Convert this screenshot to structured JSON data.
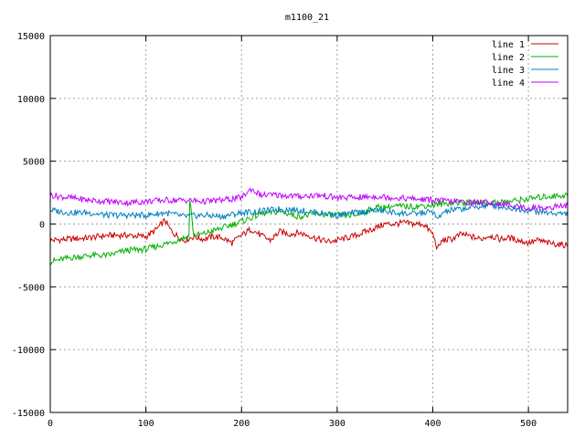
{
  "chart_data": {
    "type": "line",
    "title": "m1100_21",
    "xlabel": "",
    "ylabel": "",
    "xlim": [
      0,
      541
    ],
    "ylim": [
      -15000,
      15000
    ],
    "xticks": [
      0,
      100,
      200,
      300,
      400,
      500
    ],
    "yticks": [
      -15000,
      -10000,
      -5000,
      0,
      5000,
      10000,
      15000
    ],
    "grid": true,
    "legend_position": "top-right",
    "series": [
      {
        "name": "line 1",
        "color": "#cc0000",
        "x": [
          0,
          20,
          40,
          60,
          80,
          100,
          110,
          120,
          125,
          130,
          140,
          150,
          160,
          170,
          180,
          190,
          200,
          210,
          220,
          230,
          240,
          250,
          260,
          270,
          280,
          290,
          300,
          310,
          320,
          330,
          340,
          350,
          360,
          370,
          380,
          390,
          400,
          405,
          410,
          420,
          430,
          440,
          450,
          460,
          470,
          480,
          490,
          500,
          510,
          520,
          530,
          541
        ],
        "y": [
          -1300,
          -1200,
          -1100,
          -900,
          -900,
          -1000,
          -500,
          300,
          -400,
          -800,
          -1300,
          -1000,
          -1200,
          -1000,
          -1100,
          -1500,
          -900,
          -400,
          -900,
          -1300,
          -600,
          -800,
          -700,
          -900,
          -1200,
          -1400,
          -1300,
          -1100,
          -900,
          -600,
          -300,
          0,
          0,
          100,
          0,
          0,
          -800,
          -2000,
          -1300,
          -1200,
          -800,
          -1000,
          -1200,
          -900,
          -1200,
          -1100,
          -1300,
          -1500,
          -1300,
          -1500,
          -1600,
          -1700
        ]
      },
      {
        "name": "line 2",
        "color": "#00b000",
        "x": [
          0,
          20,
          40,
          60,
          80,
          100,
          120,
          140,
          145,
          146,
          150,
          160,
          180,
          200,
          210,
          220,
          240,
          260,
          280,
          300,
          320,
          340,
          360,
          380,
          400,
          410,
          420,
          440,
          460,
          480,
          500,
          520,
          541
        ],
        "y": [
          -3000,
          -2700,
          -2500,
          -2500,
          -2100,
          -2000,
          -1600,
          -1100,
          -1000,
          2000,
          -900,
          -800,
          -300,
          200,
          500,
          800,
          1000,
          600,
          800,
          700,
          700,
          1300,
          1400,
          1400,
          1500,
          1600,
          1700,
          1700,
          1700,
          1800,
          2000,
          2200,
          2300
        ]
      },
      {
        "name": "line 3",
        "color": "#0080c0",
        "x": [
          0,
          20,
          40,
          60,
          80,
          100,
          120,
          140,
          160,
          180,
          200,
          220,
          240,
          260,
          280,
          300,
          320,
          340,
          360,
          380,
          400,
          405,
          410,
          420,
          440,
          460,
          480,
          500,
          520,
          541
        ],
        "y": [
          1100,
          900,
          900,
          700,
          700,
          700,
          900,
          600,
          700,
          600,
          900,
          1000,
          1200,
          1100,
          900,
          700,
          900,
          1100,
          900,
          800,
          1000,
          300,
          900,
          1100,
          1300,
          1500,
          1300,
          1100,
          900,
          800
        ]
      },
      {
        "name": "line 4",
        "color": "#c000ff",
        "x": [
          0,
          20,
          40,
          60,
          80,
          100,
          120,
          140,
          160,
          180,
          200,
          210,
          220,
          240,
          260,
          280,
          300,
          320,
          340,
          360,
          380,
          400,
          420,
          440,
          460,
          480,
          500,
          520,
          541
        ],
        "y": [
          2300,
          2100,
          1900,
          1800,
          1700,
          1800,
          1900,
          1900,
          1800,
          1900,
          2100,
          2800,
          2300,
          2300,
          2200,
          2300,
          2100,
          2100,
          2200,
          2100,
          2000,
          1900,
          1800,
          1700,
          1700,
          1500,
          1300,
          1300,
          1500
        ]
      }
    ]
  }
}
